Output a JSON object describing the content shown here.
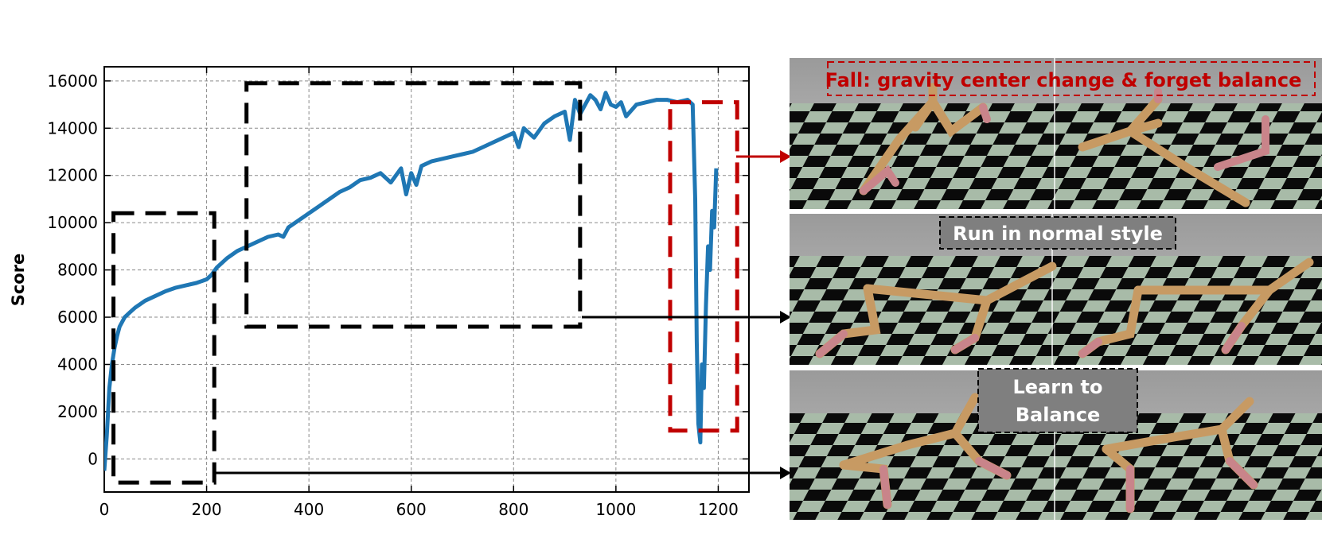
{
  "chart_data": {
    "type": "line",
    "title": "",
    "xlabel": "",
    "ylabel": "Score",
    "xlim": [
      0,
      1260
    ],
    "ylim": [
      -1400,
      16600
    ],
    "xticks": [
      0,
      200,
      400,
      600,
      800,
      1000,
      1200
    ],
    "yticks": [
      0,
      2000,
      4000,
      6000,
      8000,
      10000,
      12000,
      14000,
      16000
    ],
    "grid": true,
    "series": [
      {
        "color": "#1f77b4",
        "x": [
          0,
          5,
          10,
          15,
          20,
          25,
          30,
          40,
          50,
          60,
          80,
          100,
          120,
          140,
          160,
          180,
          200,
          210,
          220,
          240,
          260,
          280,
          300,
          320,
          340,
          350,
          360,
          380,
          400,
          420,
          440,
          460,
          480,
          500,
          520,
          540,
          560,
          580,
          590,
          600,
          610,
          620,
          640,
          660,
          680,
          700,
          720,
          740,
          760,
          780,
          800,
          810,
          820,
          840,
          860,
          880,
          900,
          910,
          920,
          930,
          940,
          950,
          960,
          970,
          980,
          990,
          1000,
          1010,
          1020,
          1040,
          1060,
          1080,
          1100,
          1120,
          1140,
          1150,
          1155,
          1158,
          1161,
          1165,
          1168,
          1172,
          1176,
          1180,
          1184,
          1188,
          1192,
          1196
        ],
        "y": [
          -500,
          1000,
          3000,
          4000,
          4700,
          5200,
          5600,
          6000,
          6200,
          6400,
          6700,
          6900,
          7100,
          7250,
          7350,
          7450,
          7600,
          7800,
          8100,
          8500,
          8800,
          9000,
          9200,
          9400,
          9500,
          9400,
          9800,
          10100,
          10400,
          10700,
          11000,
          11300,
          11500,
          11800,
          11900,
          12100,
          11700,
          12300,
          11200,
          12100,
          11600,
          12400,
          12600,
          12700,
          12800,
          12900,
          13000,
          13200,
          13400,
          13600,
          13800,
          13200,
          14000,
          13600,
          14200,
          14500,
          14700,
          13500,
          15200,
          14600,
          15000,
          15400,
          15200,
          14800,
          15500,
          15000,
          14900,
          15100,
          14500,
          15000,
          15100,
          15200,
          15200,
          15100,
          15200,
          15000,
          11000,
          5000,
          1500,
          700,
          4000,
          3000,
          6500,
          9000,
          8000,
          10500,
          9800,
          12300
        ]
      }
    ],
    "annotation_boxes": [
      {
        "style": "dashed",
        "color": "#000000",
        "x_range": [
          18,
          215
        ],
        "y_range": [
          -1000,
          10400
        ]
      },
      {
        "style": "dashed",
        "color": "#000000",
        "x_range": [
          278,
          930
        ],
        "y_range": [
          5600,
          15900
        ]
      },
      {
        "style": "dashed",
        "color": "#c00000",
        "x_range": [
          1106,
          1237
        ],
        "y_range": [
          1200,
          15100
        ]
      }
    ]
  },
  "panels": [
    {
      "caption": "Fall: gravity center change & forget balance",
      "caption_color": "#c00000"
    },
    {
      "caption": "Run in normal style",
      "caption_color": "#ffffff"
    },
    {
      "caption_line1": "Learn to",
      "caption_line2": "Balance",
      "caption_color": "#ffffff"
    }
  ]
}
